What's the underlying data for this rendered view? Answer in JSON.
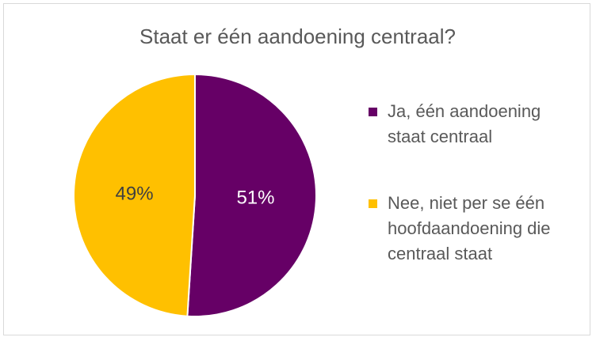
{
  "chart_data": {
    "type": "pie",
    "title": "Staat er één aandoening centraal?",
    "slices": [
      {
        "name": "Ja, één aandoening staat centraal",
        "value": 51,
        "label": "51%",
        "color": "#660066",
        "label_color": "#ffffff"
      },
      {
        "name": "Nee, niet per se één hoofdaandoening die centraal staat",
        "value": 49,
        "label": "49%",
        "color": "#FFC000",
        "label_color": "#404040"
      }
    ],
    "legend": {
      "position": "right",
      "items": [
        {
          "lines": [
            "Ja, één aandoening",
            "staat centraal"
          ],
          "color": "#660066"
        },
        {
          "lines": [
            "Nee, niet per se één",
            "hoofdaandoening die",
            "centraal staat"
          ],
          "color": "#FFC000"
        }
      ]
    }
  }
}
